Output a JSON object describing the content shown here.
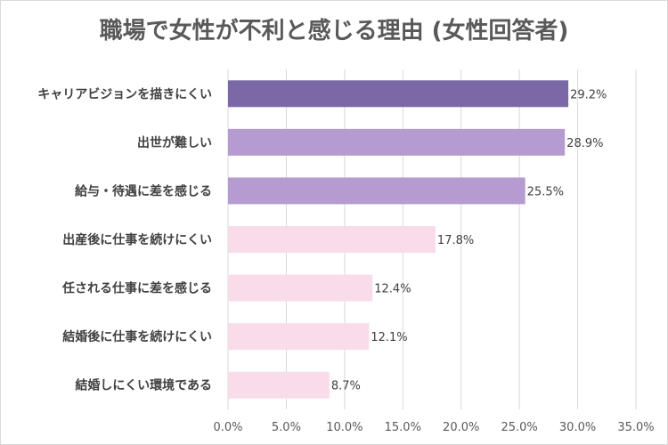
{
  "chart_data": {
    "type": "bar",
    "orientation": "horizontal",
    "title": "職場で女性が不利と感じる理由 (女性回答者)",
    "categories": [
      "キャリアビジョンを描きにくい",
      "出世が難しい",
      "給与・待遇に差を感じる",
      "出産後に仕事を続けにくい",
      "任される仕事に差を感じる",
      "結婚後に仕事を続けにくい",
      "結婚しにくい環境である"
    ],
    "values": [
      29.2,
      28.9,
      25.5,
      17.8,
      12.4,
      12.1,
      8.7
    ],
    "value_labels": [
      "29.2%",
      "28.9%",
      "25.5%",
      "17.8%",
      "12.4%",
      "12.1%",
      "8.7%"
    ],
    "bar_colors": [
      "#7b69a7",
      "#b59bcf",
      "#b59bcf",
      "#f9dcea",
      "#f9dcea",
      "#f9dcea",
      "#f9dcea"
    ],
    "xlim": [
      0,
      35
    ],
    "xticks": [
      0,
      5,
      10,
      15,
      20,
      25,
      30,
      35
    ],
    "xtick_labels": [
      "0.0%",
      "5.0%",
      "10.0%",
      "15.0%",
      "20.0%",
      "25.0%",
      "30.0%",
      "35.0%"
    ],
    "grid": true
  }
}
